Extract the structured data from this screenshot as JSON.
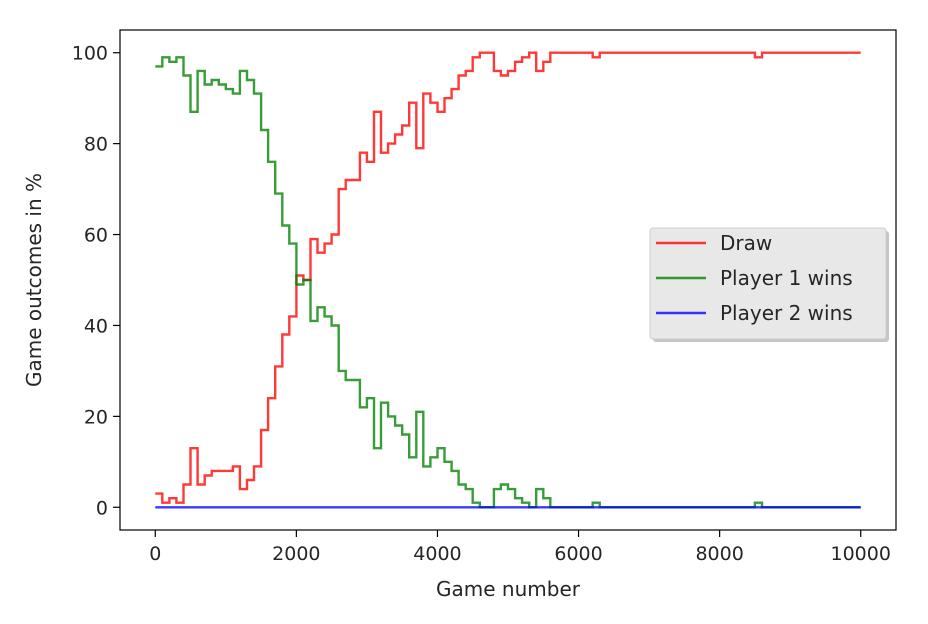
{
  "chart_data": {
    "type": "line",
    "step": true,
    "title": "",
    "xlabel": "Game number",
    "ylabel": "Game outcomes in %",
    "xlim": [
      -500,
      10500
    ],
    "ylim": [
      -5,
      105
    ],
    "xticks": [
      0,
      2000,
      4000,
      6000,
      8000,
      10000
    ],
    "yticks": [
      0,
      20,
      40,
      60,
      80,
      100
    ],
    "grid": false,
    "legend_position": "center-right",
    "series": [
      {
        "name": "Draw",
        "color": "#ff0000",
        "x": [
          0,
          100,
          200,
          300,
          400,
          500,
          600,
          700,
          800,
          900,
          1000,
          1100,
          1200,
          1300,
          1400,
          1500,
          1600,
          1700,
          1800,
          1900,
          2000,
          2100,
          2200,
          2300,
          2400,
          2500,
          2600,
          2700,
          2800,
          2900,
          3000,
          3100,
          3200,
          3300,
          3400,
          3500,
          3600,
          3700,
          3800,
          3900,
          4000,
          4100,
          4200,
          4300,
          4400,
          4500,
          4600,
          4700,
          4800,
          4900,
          5000,
          5100,
          5200,
          5300,
          5400,
          5500,
          5600,
          6100,
          6200,
          6300,
          8400,
          8500,
          8600,
          10000
        ],
        "values": [
          3,
          1,
          2,
          1,
          5,
          13,
          5,
          7,
          8,
          8,
          8,
          9,
          4,
          6,
          9,
          17,
          24,
          31,
          38,
          42,
          51,
          50,
          59,
          56,
          58,
          60,
          70,
          72,
          72,
          78,
          76,
          87,
          78,
          80,
          82,
          84,
          89,
          79,
          91,
          89,
          87,
          90,
          92,
          95,
          96,
          99,
          100,
          100,
          96,
          95,
          96,
          98,
          99,
          100,
          96,
          98,
          100,
          100,
          99,
          100,
          100,
          99,
          100,
          100
        ]
      },
      {
        "name": "Player 1 wins",
        "color": "#008000",
        "x": [
          0,
          100,
          200,
          300,
          400,
          500,
          600,
          700,
          800,
          900,
          1000,
          1100,
          1200,
          1300,
          1400,
          1500,
          1600,
          1700,
          1800,
          1900,
          2000,
          2100,
          2200,
          2300,
          2400,
          2500,
          2600,
          2700,
          2800,
          2900,
          3000,
          3100,
          3200,
          3300,
          3400,
          3500,
          3600,
          3700,
          3800,
          3900,
          4000,
          4100,
          4200,
          4300,
          4400,
          4500,
          4600,
          4700,
          4800,
          4900,
          5000,
          5100,
          5200,
          5300,
          5400,
          5500,
          5600,
          6200,
          6300,
          8500,
          8600,
          10000
        ],
        "values": [
          97,
          99,
          98,
          99,
          95,
          87,
          96,
          93,
          94,
          93,
          92,
          91,
          96,
          94,
          91,
          83,
          76,
          69,
          62,
          58,
          49,
          50,
          41,
          44,
          42,
          40,
          30,
          28,
          28,
          22,
          24,
          13,
          23,
          20,
          18,
          16,
          11,
          21,
          9,
          11,
          13,
          10,
          8,
          5,
          4,
          1,
          0,
          0,
          4,
          5,
          4,
          2,
          1,
          0,
          4,
          2,
          0,
          1,
          0,
          1,
          0,
          0
        ]
      },
      {
        "name": "Player 2 wins",
        "color": "#0000ff",
        "x": [
          0,
          10000
        ],
        "values": [
          0,
          0
        ]
      }
    ]
  }
}
